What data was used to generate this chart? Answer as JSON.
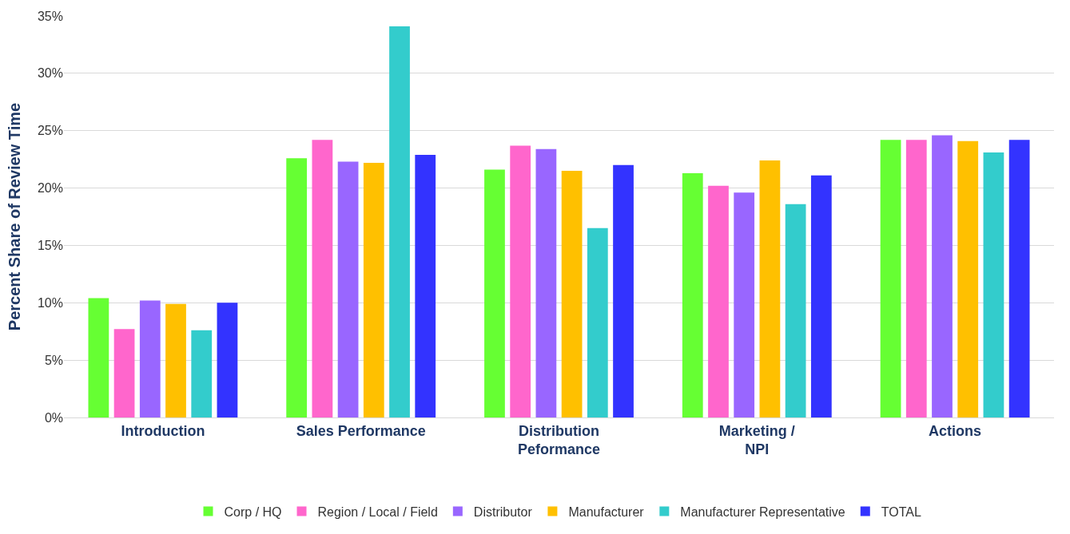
{
  "chart_data": {
    "type": "bar",
    "ylabel": "Percent Share of Review Time",
    "categories": [
      "Introduction",
      "Sales Performance",
      "Distribution Peformance",
      "Marketing / NPI",
      "Actions"
    ],
    "series": [
      {
        "name": "Corp / HQ",
        "color": "#66ff33",
        "values": [
          10.4,
          22.6,
          21.6,
          21.3,
          24.2
        ]
      },
      {
        "name": "Region / Local / Field",
        "color": "#ff66cc",
        "values": [
          7.7,
          24.2,
          23.7,
          20.2,
          24.2
        ]
      },
      {
        "name": "Distributor",
        "color": "#9966ff",
        "values": [
          10.2,
          22.3,
          23.4,
          19.6,
          24.6
        ]
      },
      {
        "name": "Manufacturer",
        "color": "#ffc000",
        "values": [
          9.9,
          22.2,
          21.5,
          22.4,
          24.1
        ]
      },
      {
        "name": "Manufacturer Representative",
        "color": "#33cccc",
        "values": [
          7.6,
          34.1,
          16.5,
          18.6,
          23.1
        ]
      },
      {
        "name": "TOTAL",
        "color": "#3333ff",
        "values": [
          10.0,
          22.9,
          22.0,
          21.1,
          24.2
        ]
      }
    ],
    "ylim": [
      0,
      35
    ],
    "yticks": [
      {
        "value": 0,
        "label": "0%"
      },
      {
        "value": 5,
        "label": "5%"
      },
      {
        "value": 10,
        "label": "10%"
      },
      {
        "value": 15,
        "label": "15%"
      },
      {
        "value": 20,
        "label": "20%"
      },
      {
        "value": 25,
        "label": "25%"
      },
      {
        "value": 30,
        "label": "30%"
      },
      {
        "value": 35,
        "label": "35%"
      }
    ],
    "grid": "y",
    "legend": "bottom"
  }
}
